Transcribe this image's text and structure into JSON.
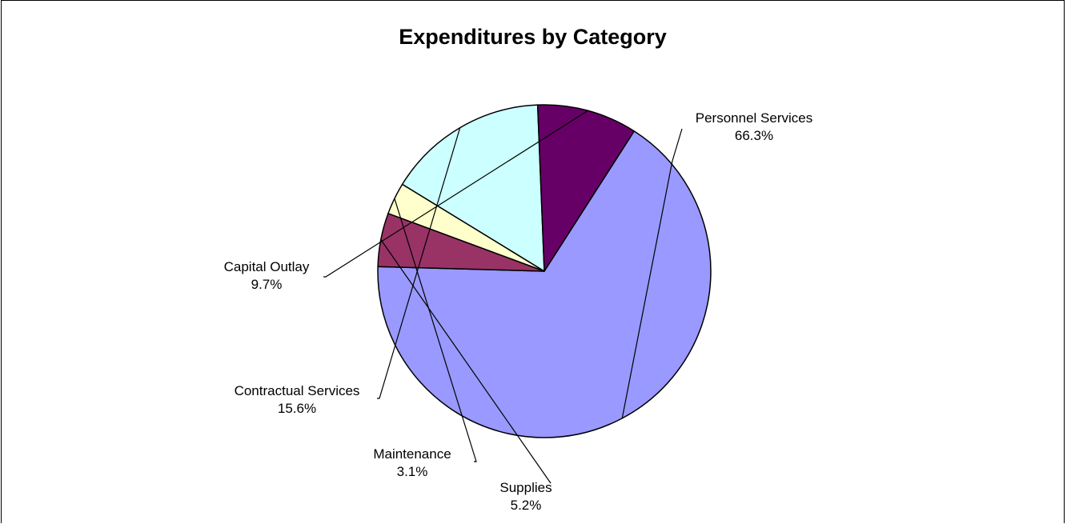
{
  "chart_data": {
    "type": "pie",
    "title": "Expenditures by Category",
    "slices": [
      {
        "label": "Personnel Services",
        "percent": 66.3,
        "percent_label": "66.3%",
        "color": "#9999ff"
      },
      {
        "label": "Supplies",
        "percent": 5.2,
        "percent_label": "5.2%",
        "color": "#993366"
      },
      {
        "label": "Maintenance",
        "percent": 3.1,
        "percent_label": "3.1%",
        "color": "#ffffcc"
      },
      {
        "label": "Contractual Services",
        "percent": 15.6,
        "percent_label": "15.6%",
        "color": "#ccffff"
      },
      {
        "label": "Capital Outlay",
        "percent": 9.7,
        "percent_label": "9.7%",
        "color": "#660066"
      }
    ],
    "legend": "none",
    "labels": "outside with leader lines"
  }
}
